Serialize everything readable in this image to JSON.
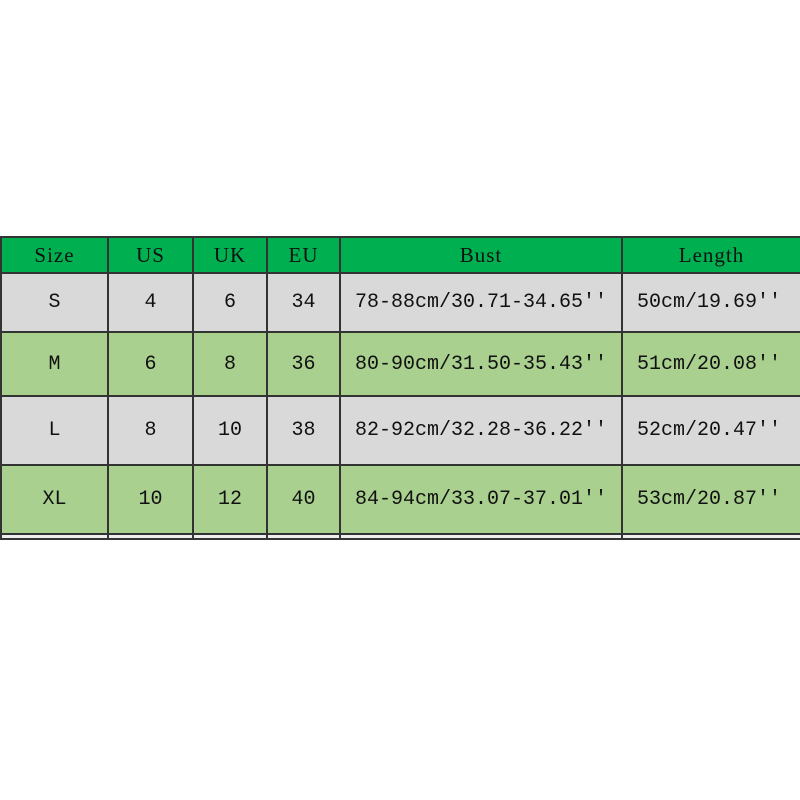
{
  "headers": [
    "Size",
    "US",
    "UK",
    "EU",
    "Bust",
    "Length"
  ],
  "rows": [
    [
      "S",
      "4",
      "6",
      "34",
      "78-88cm/30.71-34.65''",
      "50cm/19.69''"
    ],
    [
      "M",
      "6",
      "8",
      "36",
      "80-90cm/31.50-35.43''",
      "51cm/20.08''"
    ],
    [
      "L",
      "8",
      "10",
      "38",
      "82-92cm/32.28-36.22''",
      "52cm/20.47''"
    ],
    [
      "XL",
      "10",
      "12",
      "40",
      "84-94cm/33.07-37.01''",
      "53cm/20.87''"
    ]
  ],
  "colors": {
    "header": "#00b050",
    "row_odd": "#d9d9d9",
    "row_even": "#a9d08e"
  }
}
